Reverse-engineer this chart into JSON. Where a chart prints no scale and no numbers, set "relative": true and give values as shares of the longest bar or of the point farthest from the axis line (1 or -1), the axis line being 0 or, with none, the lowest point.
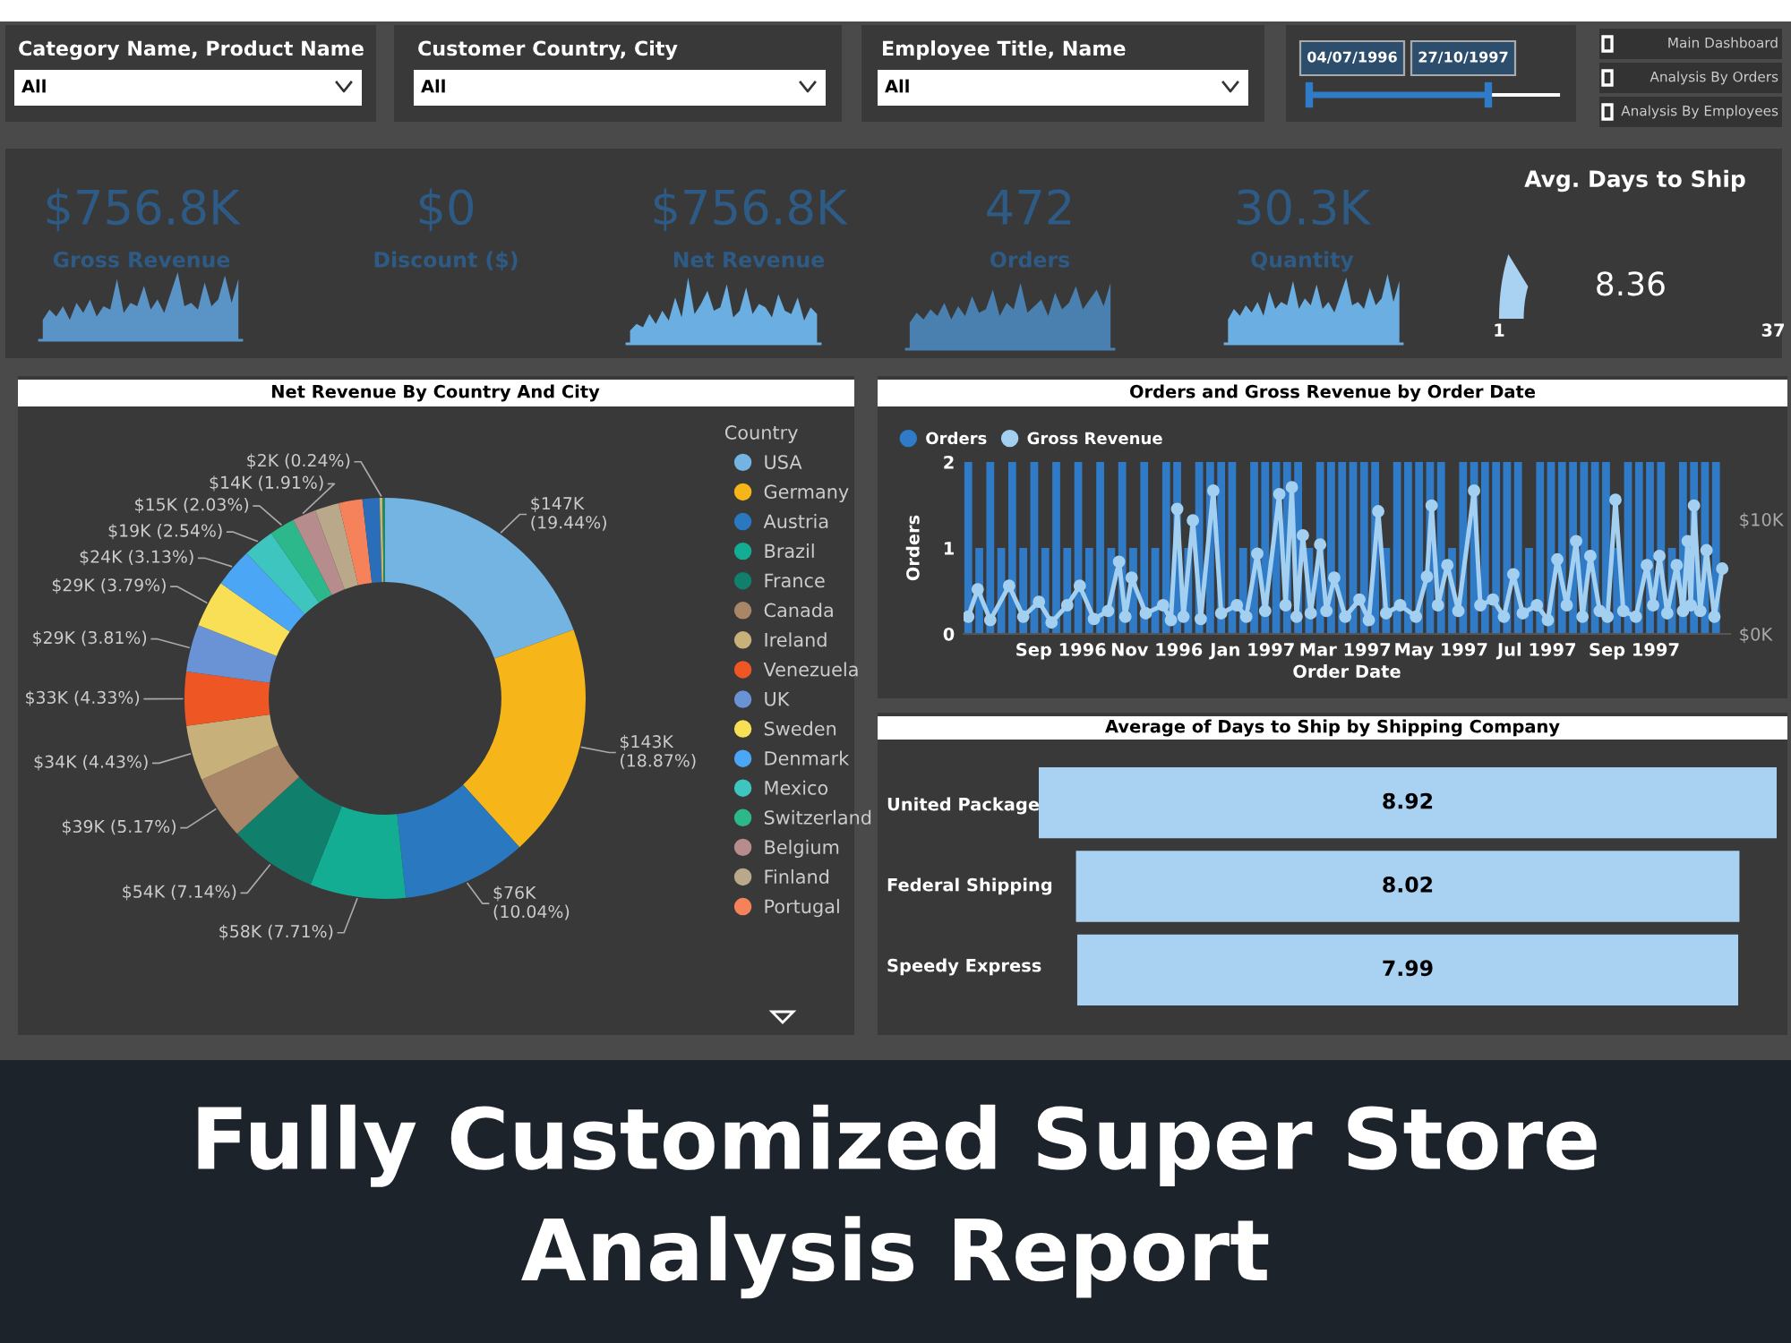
{
  "chart_data": [
    {
      "type": "other",
      "title": "Fully Customized Super Store Analysis Report",
      "annotations": [
        "Category Name, Product Name",
        "All",
        "Customer Country, City",
        "All",
        "Employee Title, Name",
        "All",
        "04/07/1996",
        "27/10/1997",
        "Main Dashboard",
        "Analysis By Orders",
        "Analysis By Employees",
        "$756.8K",
        "Gross Revenue",
        "$0",
        "Discount ($)",
        "$756.8K",
        "Net Revenue",
        "472",
        "Orders",
        "30.3K",
        "Quantity"
      ]
    },
    {
      "type": "area",
      "relative": true,
      "color": "#5a93c6",
      "categories": [
        null,
        null,
        null,
        null,
        null,
        null,
        null,
        null,
        null,
        null,
        null,
        null,
        null,
        null,
        null,
        null,
        null,
        null,
        null,
        null,
        null,
        null,
        null,
        null,
        null,
        null,
        null,
        null,
        null,
        null
      ],
      "values": [
        0.3,
        0.45,
        0.35,
        0.5,
        0.3,
        0.55,
        0.4,
        0.6,
        0.35,
        0.5,
        0.45,
        0.9,
        0.4,
        0.55,
        0.5,
        0.8,
        0.45,
        0.6,
        0.4,
        0.7,
        1.0,
        0.5,
        0.55,
        0.45,
        0.85,
        0.5,
        0.6,
        0.95,
        0.55,
        0.9
      ]
    },
    {
      "type": "area",
      "relative": true,
      "color": "#6aaee2",
      "categories": [
        null,
        null,
        null,
        null,
        null,
        null,
        null,
        null,
        null,
        null,
        null,
        null,
        null,
        null,
        null,
        null,
        null,
        null,
        null,
        null,
        null,
        null,
        null,
        null,
        null,
        null,
        null,
        null,
        null,
        null
      ],
      "values": [
        0.2,
        0.3,
        0.25,
        0.45,
        0.3,
        0.5,
        0.35,
        0.7,
        0.4,
        1.0,
        0.45,
        0.6,
        0.8,
        0.5,
        0.55,
        0.9,
        0.4,
        0.5,
        0.85,
        0.45,
        0.6,
        0.55,
        0.4,
        0.75,
        0.5,
        0.45,
        0.7,
        0.35,
        0.55,
        0.45
      ]
    },
    {
      "type": "area",
      "relative": true,
      "color": "#4a80b0",
      "categories": [
        null,
        null,
        null,
        null,
        null,
        null,
        null,
        null,
        null,
        null,
        null,
        null,
        null,
        null,
        null,
        null,
        null,
        null,
        null,
        null,
        null,
        null,
        null,
        null,
        null,
        null,
        null,
        null,
        null,
        null
      ],
      "values": [
        0.4,
        0.55,
        0.45,
        0.6,
        0.5,
        0.7,
        0.45,
        0.65,
        0.5,
        0.8,
        0.55,
        0.6,
        0.9,
        0.5,
        0.7,
        0.6,
        1.0,
        0.55,
        0.65,
        0.75,
        0.5,
        0.85,
        0.6,
        0.7,
        0.95,
        0.6,
        0.75,
        0.9,
        0.65,
        1.0
      ]
    },
    {
      "type": "area",
      "relative": true,
      "color": "#6aaee2",
      "categories": [
        null,
        null,
        null,
        null,
        null,
        null,
        null,
        null,
        null,
        null,
        null,
        null,
        null,
        null,
        null,
        null,
        null,
        null,
        null,
        null,
        null,
        null,
        null,
        null,
        null,
        null,
        null,
        null,
        null,
        null
      ],
      "values": [
        0.35,
        0.5,
        0.4,
        0.55,
        0.45,
        0.6,
        0.4,
        0.75,
        0.5,
        0.6,
        0.55,
        0.9,
        0.5,
        0.65,
        0.55,
        0.85,
        0.5,
        0.6,
        0.45,
        0.7,
        0.95,
        0.55,
        0.6,
        0.5,
        0.8,
        0.55,
        0.65,
        1.0,
        0.6,
        0.9
      ]
    },
    {
      "type": "other",
      "title": "Avg. Days to Ship",
      "values": [
        8.36
      ],
      "annotations": [
        "1",
        "37"
      ],
      "data_labels": true,
      "color": "#a9d1f2"
    },
    {
      "type": "donut",
      "title": "Net Revenue By Country And City",
      "legend_title": "Country",
      "legend": "right",
      "categories": [
        "USA",
        "Germany",
        "Austria",
        "Brazil",
        "France",
        "Canada",
        "Ireland",
        "Venezuela",
        "UK",
        "Sweden",
        "Denmark",
        "Mexico",
        "Switzerland",
        "Belgium",
        "Finland",
        "Portugal",
        null,
        null,
        null
      ],
      "values": [
        19.44,
        18.87,
        10.04,
        7.71,
        7.14,
        5.17,
        4.43,
        4.33,
        3.81,
        3.79,
        3.13,
        2.54,
        2.03,
        1.91,
        1.95,
        1.9,
        1.37,
        0.24,
        0.2
      ],
      "colors": [
        "#73b4e2",
        "#f6b619",
        "#2a78c0",
        "#13ad93",
        "#10806c",
        "#a98668",
        "#c7b07a",
        "#ee5624",
        "#6a93d6",
        "#f8df55",
        "#4ba6f5",
        "#3fc5c0",
        "#2db88c",
        "#b68c8c",
        "#b9a98a",
        "#f5825a",
        "#2a6db8",
        "#c8b56e",
        "#1d8a6c"
      ],
      "value_labels": [
        "$147K (19.44%)",
        "$143K (18.87%)",
        "$76K (10.04%)",
        "$58K (7.71%)",
        "$54K (7.14%)",
        "$39K (5.17%)",
        "$34K (4.43%)",
        "$33K (4.33%)",
        "$29K (3.81%)",
        "$29K (3.79%)",
        "$24K (3.13%)",
        "$19K (2.54%)",
        "$15K (2.03%)",
        "$14K (1.91%)",
        null,
        null,
        null,
        "$2K (0.24%)",
        null
      ]
    },
    {
      "type": "bar",
      "title": "Orders and Gross Revenue by Order Date",
      "xlabel": "Order Date",
      "ylabel": "Orders",
      "legend": "top left",
      "xlim": [
        "1996-07-01",
        "1997-11-01"
      ],
      "xticks": [
        {
          "value": "1996-09-01",
          "label": "Sep 1996"
        },
        {
          "value": "1996-11-01",
          "label": "Nov 1996"
        },
        {
          "value": "1997-01-01",
          "label": "Jan 1997"
        },
        {
          "value": "1997-03-01",
          "label": "Mar 1997"
        },
        {
          "value": "1997-05-01",
          "label": "May 1997"
        },
        {
          "value": "1997-07-01",
          "label": "Jul 1997"
        },
        {
          "value": "1997-09-01",
          "label": "Sep 1997"
        }
      ],
      "ylim": [
        0,
        2
      ],
      "yticks": [
        0,
        1,
        2
      ],
      "y2lim": [
        0,
        15000
      ],
      "y2ticks": [
        {
          "value": 0,
          "label": "$0K"
        },
        {
          "value": 10000,
          "label": "$10K"
        }
      ],
      "series": [
        {
          "name": "Orders",
          "type": "bar",
          "color": "#2f7bc8",
          "x": [
            "1996-07-04",
            "1996-07-11",
            "1996-07-18",
            "1996-07-25",
            "1996-08-01",
            "1996-08-08",
            "1996-08-15",
            "1996-08-22",
            "1996-08-29",
            "1996-09-05",
            "1996-09-12",
            "1996-09-19",
            "1996-09-26",
            "1996-10-03",
            "1996-10-10",
            "1996-10-17",
            "1996-10-24",
            "1996-10-31",
            "1996-11-07",
            "1996-11-14",
            "1996-11-21",
            "1996-11-28",
            "1996-12-05",
            "1996-12-12",
            "1996-12-19",
            "1996-12-26",
            "1997-01-02",
            "1997-01-09",
            "1997-01-16",
            "1997-01-23",
            "1997-01-30",
            "1997-02-06",
            "1997-02-13",
            "1997-02-20",
            "1997-02-27",
            "1997-03-06",
            "1997-03-13",
            "1997-03-20",
            "1997-03-27",
            "1997-04-03",
            "1997-04-10",
            "1997-04-17",
            "1997-04-24",
            "1997-05-01",
            "1997-05-08",
            "1997-05-15",
            "1997-05-22",
            "1997-05-29",
            "1997-06-05",
            "1997-06-12",
            "1997-06-19",
            "1997-06-26",
            "1997-07-03",
            "1997-07-10",
            "1997-07-17",
            "1997-07-24",
            "1997-07-31",
            "1997-08-07",
            "1997-08-14",
            "1997-08-21",
            "1997-08-28",
            "1997-09-04",
            "1997-09-11",
            "1997-09-18",
            "1997-09-25",
            "1997-10-02",
            "1997-10-09",
            "1997-10-16",
            "1997-10-23"
          ],
          "values": [
            2,
            1,
            2,
            1,
            2,
            1,
            2,
            1,
            2,
            1,
            2,
            1,
            2,
            1,
            2,
            1,
            2,
            1,
            2,
            2,
            1,
            2,
            2,
            2,
            2,
            1,
            2,
            2,
            2,
            2,
            2,
            1,
            2,
            2,
            2,
            2,
            2,
            2,
            1,
            2,
            2,
            2,
            2,
            2,
            1,
            2,
            2,
            2,
            2,
            2,
            2,
            1,
            2,
            2,
            2,
            2,
            2,
            2,
            2,
            1,
            2,
            2,
            2,
            2,
            1,
            2,
            2,
            2,
            2
          ]
        },
        {
          "name": "Gross Revenue",
          "type": "line",
          "axis": "y2",
          "color": "#a3cff0",
          "marker": "circle",
          "x": [
            "1996-07-04",
            "1996-07-10",
            "1996-07-18",
            "1996-07-30",
            "1996-08-08",
            "1996-08-18",
            "1996-08-26",
            "1996-09-05",
            "1996-09-13",
            "1996-09-22",
            "1996-10-01",
            "1996-10-08",
            "1996-10-12",
            "1996-10-16",
            "1996-10-25",
            "1996-11-05",
            "1996-11-10",
            "1996-11-14",
            "1996-11-18",
            "1996-11-24",
            "1996-11-29",
            "1996-12-07",
            "1996-12-12",
            "1996-12-22",
            "1996-12-28",
            "1997-01-04",
            "1997-01-09",
            "1997-01-18",
            "1997-01-22",
            "1997-01-26",
            "1997-01-29",
            "1997-02-02",
            "1997-02-07",
            "1997-02-13",
            "1997-02-17",
            "1997-02-22",
            "1997-03-01",
            "1997-03-10",
            "1997-03-16",
            "1997-03-22",
            "1997-03-27",
            "1997-04-05",
            "1997-04-15",
            "1997-04-22",
            "1997-04-25",
            "1997-04-29",
            "1997-05-05",
            "1997-05-12",
            "1997-05-22",
            "1997-05-26",
            "1997-06-03",
            "1997-06-10",
            "1997-06-16",
            "1997-06-22",
            "1997-07-01",
            "1997-07-08",
            "1997-07-14",
            "1997-07-20",
            "1997-07-26",
            "1997-07-30",
            "1997-08-04",
            "1997-08-10",
            "1997-08-15",
            "1997-08-20",
            "1997-08-25",
            "1997-09-02",
            "1997-09-09",
            "1997-09-13",
            "1997-09-17",
            "1997-09-22",
            "1997-09-28",
            "1997-10-02",
            "1997-10-05",
            "1997-10-07",
            "1997-10-09",
            "1997-10-13",
            "1997-10-17",
            "1997-10-22",
            "1997-10-27"
          ],
          "values": [
            1500,
            3900,
            1200,
            4200,
            1500,
            2800,
            1000,
            2500,
            4200,
            1300,
            2000,
            6300,
            1500,
            4900,
            1800,
            2500,
            1200,
            10900,
            1500,
            9900,
            1300,
            12500,
            1800,
            2500,
            1500,
            7000,
            2000,
            12200,
            2500,
            12800,
            1500,
            8600,
            1800,
            7800,
            2000,
            4900,
            1500,
            3000,
            1200,
            10700,
            1800,
            2500,
            1500,
            5000,
            11200,
            2500,
            6000,
            2000,
            12500,
            2500,
            3000,
            1500,
            5200,
            1800,
            2500,
            1200,
            6500,
            2500,
            8100,
            1500,
            6800,
            2000,
            1500,
            11700,
            2000,
            1500,
            6000,
            2500,
            6800,
            1800,
            6000,
            2000,
            8100,
            2500,
            11200,
            2000,
            7300,
            1500,
            5700
          ]
        }
      ]
    },
    {
      "type": "other",
      "title": "Average of Days to Ship by Shipping Company",
      "categories": [
        "United Package",
        "Federal Shipping",
        "Speedy Express"
      ],
      "values": [
        8.92,
        8.02,
        7.99
      ],
      "color": "#a9d1f2",
      "data_labels": true
    }
  ]
}
